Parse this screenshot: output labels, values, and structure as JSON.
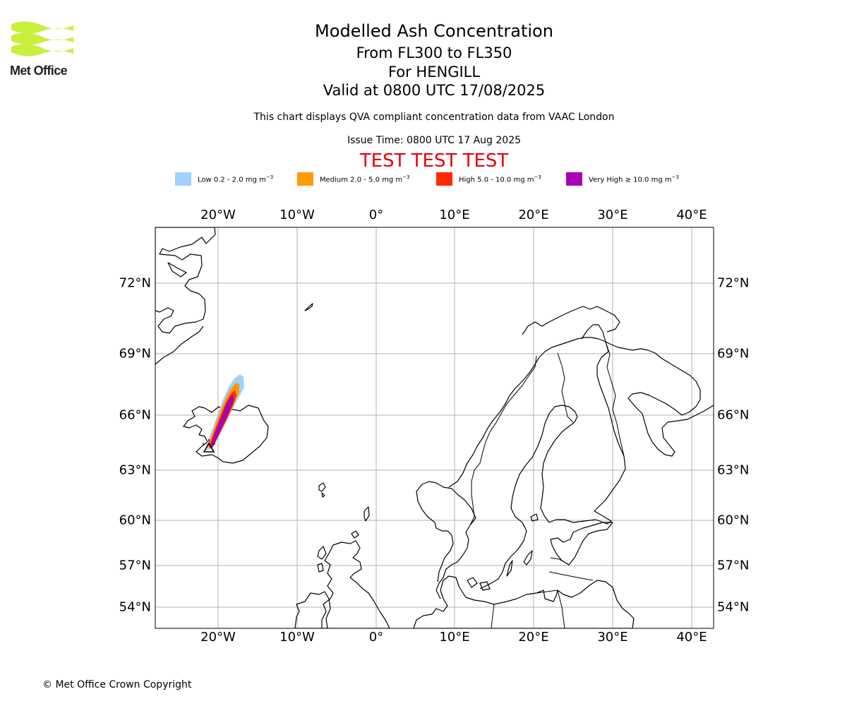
{
  "logo": {
    "text": "Met Office",
    "color": "#c8f03c"
  },
  "header": {
    "title": "Modelled Ash Concentration",
    "levels": "From FL300 to FL350",
    "volcano": "For HENGILL",
    "valid": "Valid at 0800 UTC 17/08/2025",
    "note": "This chart displays QVA compliant concentration data from VAAC London",
    "issue": "Issue Time: 0800 UTC 17 Aug 2025",
    "test_banner": "TEST TEST TEST",
    "test_color": "#e8000b"
  },
  "legend": [
    {
      "label": "Low 0.2 - 2.0 mg m",
      "color": "#9ed2ff"
    },
    {
      "label": "Medium 2.0 - 5.0 mg m",
      "color": "#ff9a00"
    },
    {
      "label": "High 5.0 - 10.0 mg m",
      "color": "#ff2a00"
    },
    {
      "label": "Very High ≥ 10.0 mg m",
      "color": "#aa00b5"
    }
  ],
  "legend_unit_exponent": "−3",
  "map": {
    "lon_ticks": [
      "20°W",
      "10°W",
      "0°",
      "10°E",
      "20°E",
      "30°E",
      "40°E"
    ],
    "lat_ticks": [
      "72°N",
      "69°N",
      "66°N",
      "63°N",
      "60°N",
      "57°N",
      "54°N"
    ],
    "gridlines": true,
    "volcano_location": {
      "lat": 64.08,
      "lon": -21.33
    },
    "volcano_marker": "triangle-icon"
  },
  "footer": {
    "copyright": "© Met Office Crown Copyright"
  }
}
